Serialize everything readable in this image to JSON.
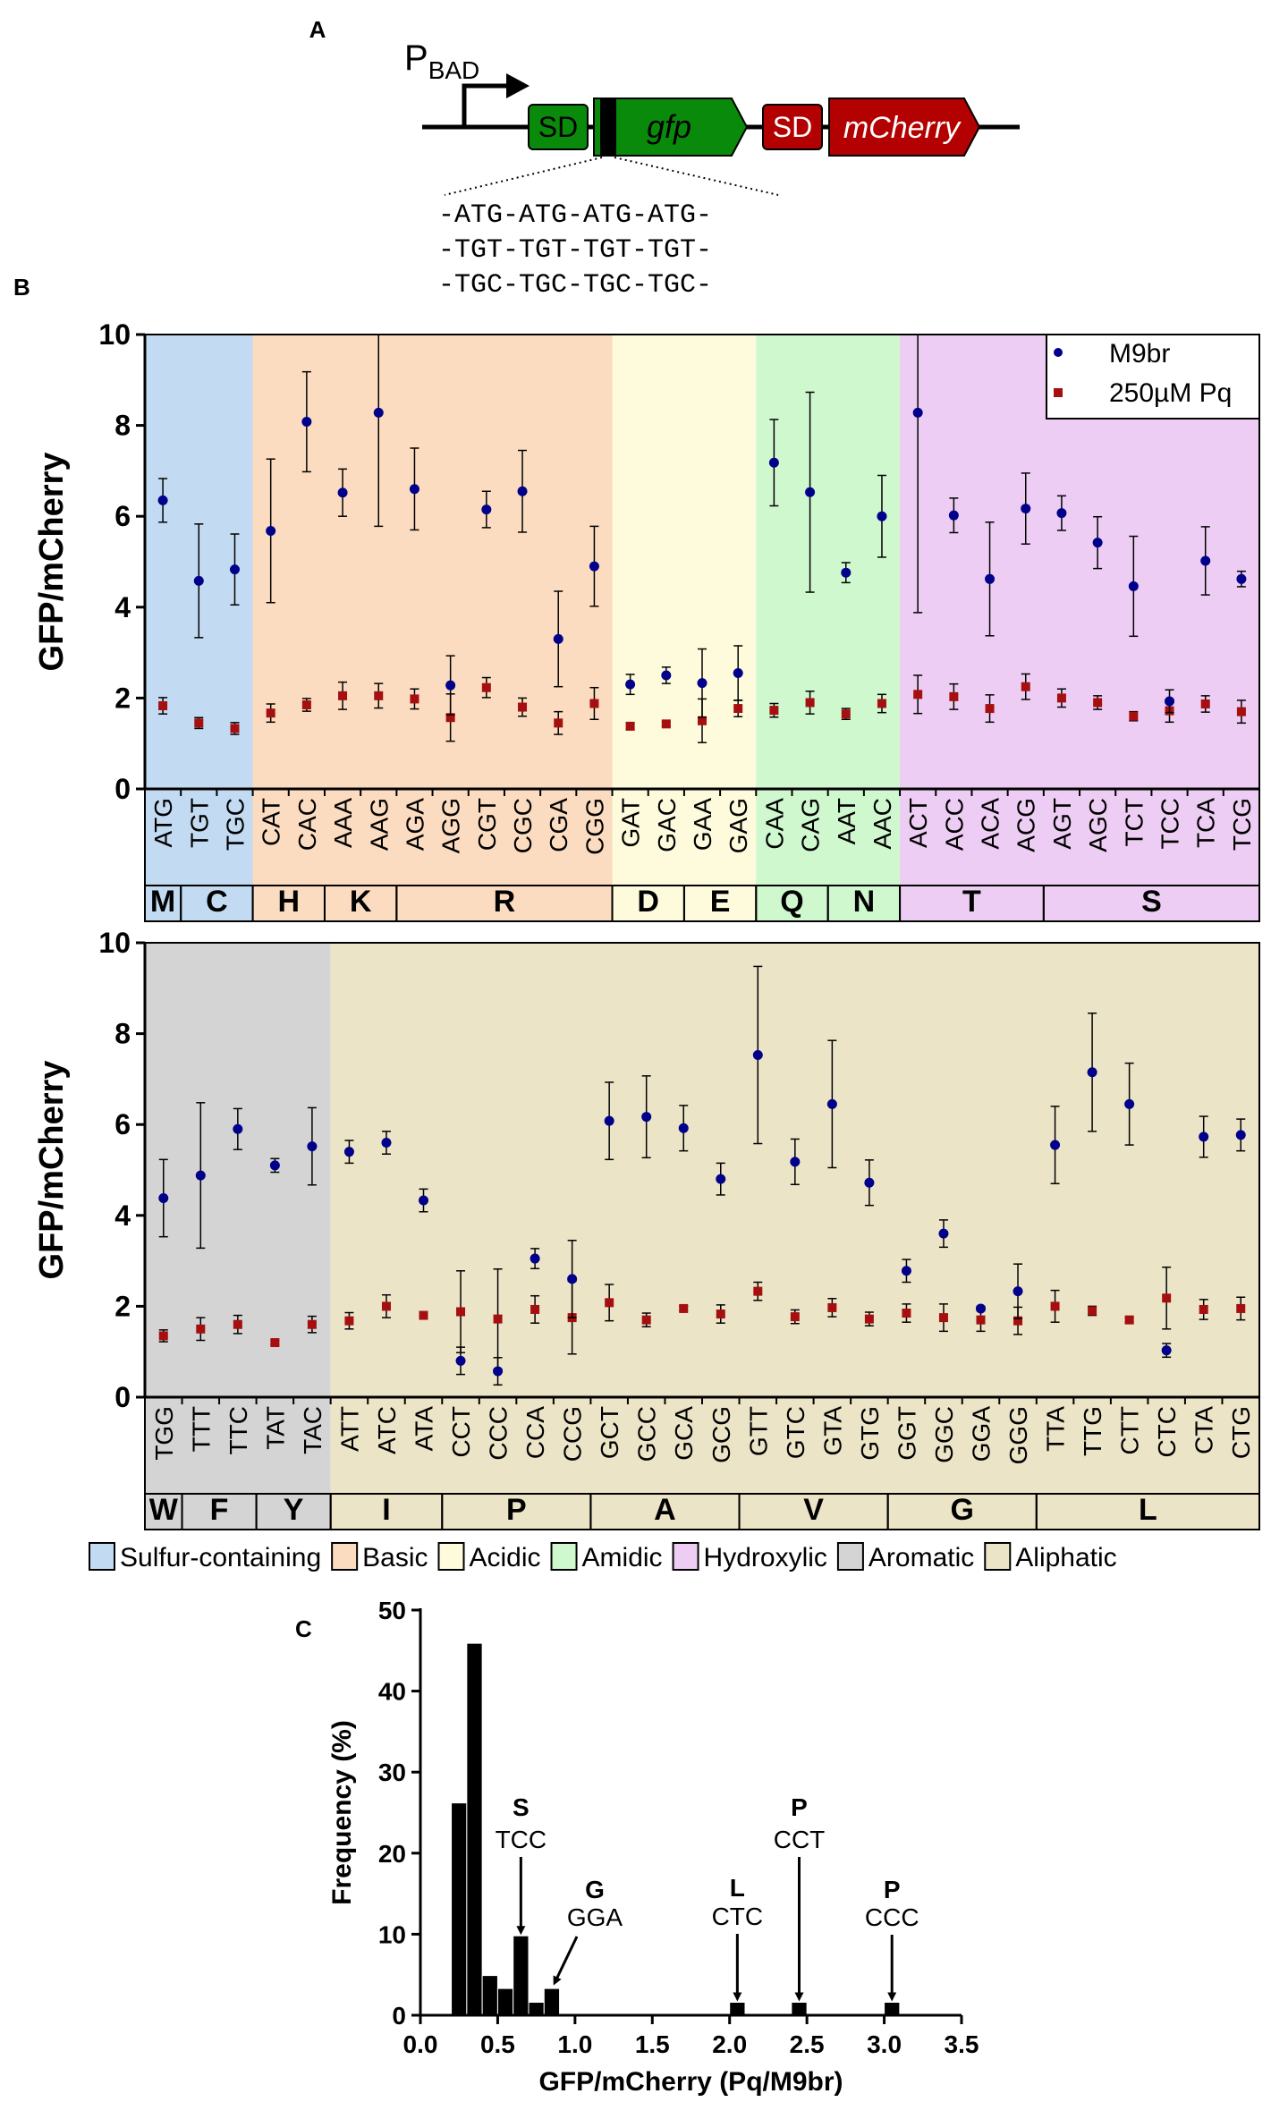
{
  "panels": {
    "a": "A",
    "b": "B",
    "c": "C"
  },
  "construct": {
    "promoter_main": "P",
    "promoter_sub": "BAD",
    "sd1": "SD",
    "gene1": "gfp",
    "sd2": "SD",
    "gene2": "mCherry",
    "insert_lines": [
      "-ATG-ATG-ATG-ATG-",
      "-TGT-TGT-TGT-TGT-",
      "-TGC-TGC-TGC-TGC-"
    ]
  },
  "colors": {
    "m9br": "#00008b",
    "pq": "#a50f0f",
    "gfp_green": "#0a8a0a",
    "mcherry_red": "#b30000",
    "sulfur": "#c3dbf2",
    "basic": "#fbdcc0",
    "acidic": "#fdfbdc",
    "amidic": "#cff8cf",
    "hydroxylic": "#edcdf3",
    "aromatic": "#d4d4d4",
    "aliphatic": "#ece4c7"
  },
  "legend_groups": [
    {
      "key": "sulfur",
      "label": "Sulfur-containing"
    },
    {
      "key": "basic",
      "label": "Basic"
    },
    {
      "key": "acidic",
      "label": "Acidic"
    },
    {
      "key": "amidic",
      "label": "Amidic"
    },
    {
      "key": "hydroxylic",
      "label": "Hydroxylic"
    },
    {
      "key": "aromatic",
      "label": "Aromatic"
    },
    {
      "key": "aliphatic",
      "label": "Aliphatic"
    }
  ],
  "chart_data": [
    {
      "type": "scatter",
      "ylabel": "GFP/mCherry",
      "ylim": [
        0,
        10
      ],
      "yticks": [
        0,
        2,
        4,
        6,
        8,
        10
      ],
      "series": [
        {
          "name": "M9br"
        },
        {
          "name": "250µM Pq"
        }
      ],
      "legend": "top-right",
      "codons": [
        "ATG",
        "TGT",
        "TGC",
        "CAT",
        "CAC",
        "AAA",
        "AAG",
        "AGA",
        "AGG",
        "CGT",
        "CGC",
        "CGA",
        "CGG",
        "GAT",
        "GAC",
        "GAA",
        "GAG",
        "CAA",
        "CAG",
        "AAT",
        "AAC",
        "ACT",
        "ACC",
        "ACA",
        "ACG",
        "AGT",
        "AGC",
        "TCT",
        "TCC",
        "TCA",
        "TCG"
      ],
      "m9br": [
        6.35,
        4.58,
        4.83,
        5.68,
        8.08,
        6.52,
        8.28,
        6.6,
        2.28,
        6.15,
        6.55,
        3.3,
        4.9,
        2.3,
        2.5,
        2.33,
        2.55,
        7.18,
        6.53,
        4.76,
        6.0,
        8.28,
        6.02,
        4.62,
        6.17,
        6.07,
        5.42,
        4.46,
        1.93,
        5.02,
        4.62
      ],
      "m9br_err": [
        0.48,
        1.25,
        0.78,
        1.58,
        1.1,
        0.52,
        2.5,
        0.9,
        0.65,
        0.4,
        0.9,
        1.05,
        0.88,
        0.22,
        0.18,
        0.75,
        0.6,
        0.95,
        2.2,
        0.22,
        0.9,
        4.4,
        0.38,
        1.25,
        0.78,
        0.38,
        0.57,
        1.1,
        0.25,
        0.75,
        0.17
      ],
      "pq": [
        1.83,
        1.45,
        1.33,
        1.67,
        1.85,
        2.05,
        2.05,
        1.98,
        1.57,
        2.23,
        1.8,
        1.45,
        1.88,
        1.38,
        1.43,
        1.5,
        1.77,
        1.73,
        1.9,
        1.65,
        1.88,
        2.08,
        2.03,
        1.77,
        2.25,
        2.0,
        1.9,
        1.6,
        1.72,
        1.87,
        1.7
      ],
      "pq_err": [
        0.18,
        0.12,
        0.13,
        0.2,
        0.14,
        0.3,
        0.27,
        0.22,
        0.52,
        0.22,
        0.2,
        0.25,
        0.35,
        0.07,
        0.05,
        0.48,
        0.18,
        0.15,
        0.25,
        0.12,
        0.2,
        0.42,
        0.28,
        0.3,
        0.28,
        0.2,
        0.15,
        0.1,
        0.25,
        0.18,
        0.25
      ],
      "amino_acids": [
        {
          "aa": "M",
          "n": 1,
          "group": "sulfur"
        },
        {
          "aa": "C",
          "n": 2,
          "group": "sulfur"
        },
        {
          "aa": "H",
          "n": 2,
          "group": "basic"
        },
        {
          "aa": "K",
          "n": 2,
          "group": "basic"
        },
        {
          "aa": "R",
          "n": 6,
          "group": "basic"
        },
        {
          "aa": "D",
          "n": 2,
          "group": "acidic"
        },
        {
          "aa": "E",
          "n": 2,
          "group": "acidic"
        },
        {
          "aa": "Q",
          "n": 2,
          "group": "amidic"
        },
        {
          "aa": "N",
          "n": 2,
          "group": "amidic"
        },
        {
          "aa": "T",
          "n": 4,
          "group": "hydroxylic"
        },
        {
          "aa": "S",
          "n": 6,
          "group": "hydroxylic"
        }
      ]
    },
    {
      "type": "scatter",
      "ylabel": "GFP/mCherry",
      "ylim": [
        0,
        10
      ],
      "yticks": [
        0,
        2,
        4,
        6,
        8,
        10
      ],
      "codons": [
        "TGG",
        "TTT",
        "TTC",
        "TAT",
        "TAC",
        "ATT",
        "ATC",
        "ATA",
        "CCT",
        "CCC",
        "CCA",
        "CCG",
        "GCT",
        "GCC",
        "GCA",
        "GCG",
        "GTT",
        "GTC",
        "GTA",
        "GTG",
        "GGT",
        "GGC",
        "GGA",
        "GGG",
        "TTA",
        "TTG",
        "CTT",
        "CTC",
        "CTA",
        "CTG"
      ],
      "m9br": [
        4.38,
        4.88,
        5.9,
        5.1,
        5.52,
        5.4,
        5.6,
        4.33,
        0.8,
        0.57,
        3.05,
        2.6,
        6.08,
        6.17,
        5.92,
        4.8,
        7.53,
        5.18,
        6.45,
        4.72,
        2.78,
        3.6,
        1.95,
        2.33,
        5.55,
        7.15,
        6.45,
        1.03,
        5.73,
        5.77
      ],
      "m9br_err": [
        0.85,
        1.6,
        0.45,
        0.15,
        0.85,
        0.25,
        0.25,
        0.25,
        0.3,
        0.3,
        0.22,
        0.85,
        0.85,
        0.9,
        0.5,
        0.35,
        1.95,
        0.5,
        1.4,
        0.5,
        0.25,
        0.3,
        0.05,
        0.6,
        0.85,
        1.3,
        0.9,
        0.15,
        0.45,
        0.35
      ],
      "pq": [
        1.35,
        1.5,
        1.6,
        1.2,
        1.6,
        1.68,
        2.0,
        1.8,
        1.88,
        1.72,
        1.93,
        1.75,
        2.08,
        1.7,
        1.95,
        1.83,
        2.33,
        1.77,
        1.97,
        1.72,
        1.85,
        1.75,
        1.7,
        1.68,
        2.0,
        1.9,
        1.7,
        2.18,
        1.93,
        1.95
      ],
      "pq_err": [
        0.13,
        0.25,
        0.2,
        0.05,
        0.18,
        0.18,
        0.25,
        0.05,
        0.9,
        1.1,
        0.3,
        0.8,
        0.4,
        0.15,
        0.05,
        0.2,
        0.2,
        0.15,
        0.2,
        0.15,
        0.2,
        0.3,
        0.25,
        0.3,
        0.35,
        0.1,
        0.05,
        0.68,
        0.22,
        0.25
      ],
      "amino_acids": [
        {
          "aa": "W",
          "n": 1,
          "group": "aromatic"
        },
        {
          "aa": "F",
          "n": 2,
          "group": "aromatic"
        },
        {
          "aa": "Y",
          "n": 2,
          "group": "aromatic"
        },
        {
          "aa": "I",
          "n": 3,
          "group": "aliphatic"
        },
        {
          "aa": "P",
          "n": 4,
          "group": "aliphatic"
        },
        {
          "aa": "A",
          "n": 4,
          "group": "aliphatic"
        },
        {
          "aa": "V",
          "n": 4,
          "group": "aliphatic"
        },
        {
          "aa": "G",
          "n": 4,
          "group": "aliphatic"
        },
        {
          "aa": "L",
          "n": 6,
          "group": "aliphatic"
        }
      ]
    },
    {
      "type": "bar",
      "xlabel": "GFP/mCherry (Pq/M9br)",
      "ylabel": "Frequency (%)",
      "xlim": [
        0,
        3.5
      ],
      "ylim": [
        0,
        50
      ],
      "xticks": [
        "0.0",
        "0.5",
        "1.0",
        "1.5",
        "2.0",
        "2.5",
        "3.0",
        "3.5"
      ],
      "yticks": [
        0,
        10,
        20,
        30,
        40,
        50
      ],
      "bin_width": 0.1,
      "bin_starts": [
        0.2,
        0.3,
        0.4,
        0.5,
        0.6,
        0.7,
        0.8,
        2.0,
        2.4,
        3.0
      ],
      "values": [
        26.2,
        45.9,
        4.9,
        3.3,
        9.8,
        1.6,
        3.3,
        1.6,
        1.6,
        1.6
      ],
      "annotations": [
        {
          "aa": "S",
          "codon": "TCC",
          "x": 0.65,
          "target": 9.8
        },
        {
          "aa": "G",
          "codon": "GGA",
          "x": 0.85,
          "target": 3.3
        },
        {
          "aa": "L",
          "codon": "CTC",
          "x": 2.05,
          "target": 1.6
        },
        {
          "aa": "P",
          "codon": "CCT",
          "x": 2.45,
          "target": 1.6
        },
        {
          "aa": "P",
          "codon": "CCC",
          "x": 3.05,
          "target": 1.6
        }
      ]
    }
  ]
}
